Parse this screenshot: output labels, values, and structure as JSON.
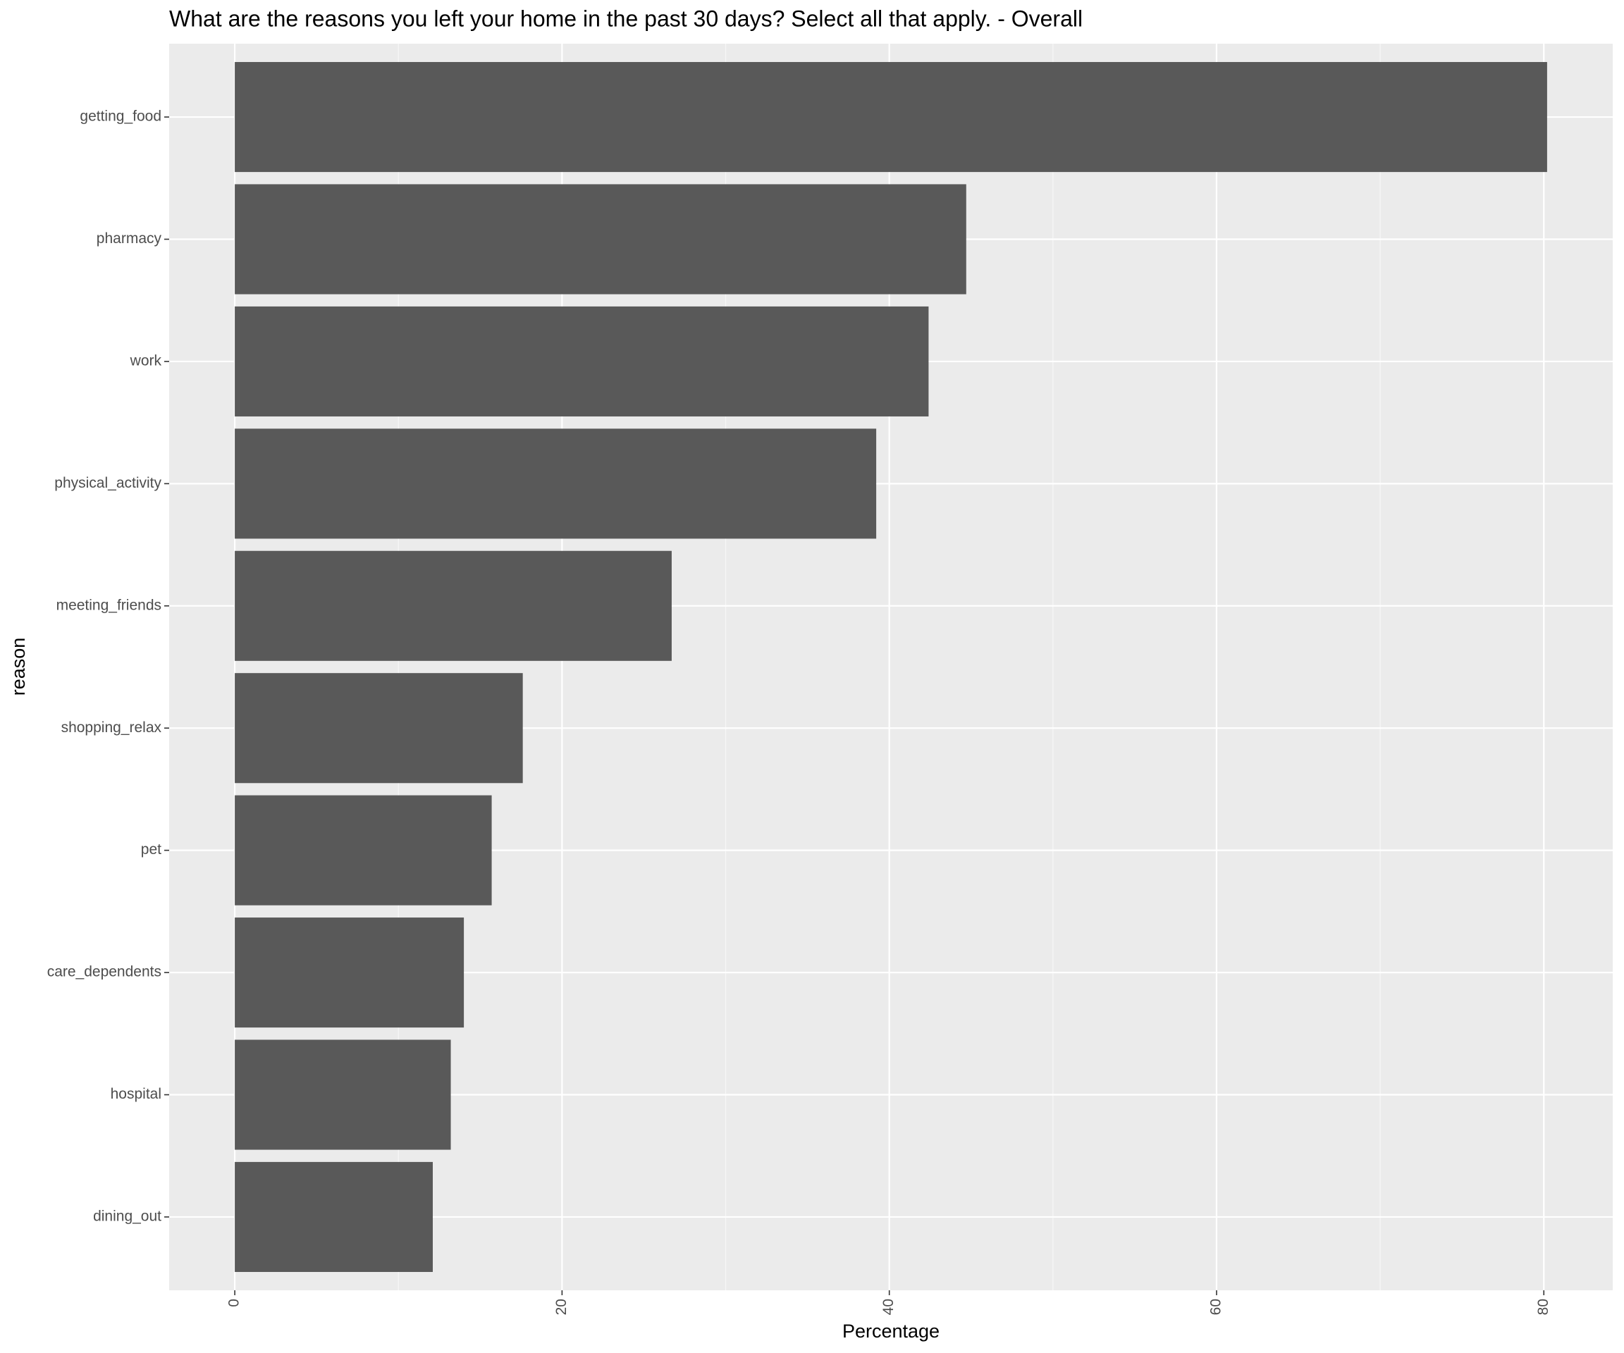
{
  "chart_data": {
    "type": "bar",
    "orientation": "horizontal",
    "title": "What are the reasons you left your home in the past 30 days? Select all that apply. - Overall",
    "x_label": "Percentage",
    "y_label": "reason",
    "categories": [
      "getting_food",
      "pharmacy",
      "work",
      "physical_activity",
      "meeting_friends",
      "shopping_relax",
      "pet",
      "care_dependents",
      "hospital",
      "dining_out"
    ],
    "values": [
      80.2,
      44.7,
      42.4,
      39.2,
      26.7,
      17.6,
      15.7,
      14.0,
      13.2,
      12.1
    ],
    "color": "#595959",
    "xlim": [
      -4.01,
      84.21
    ],
    "xticks": [
      0,
      20,
      40,
      60,
      80
    ],
    "minor_xticks": [
      10,
      30,
      50,
      70
    ],
    "grid": true
  }
}
